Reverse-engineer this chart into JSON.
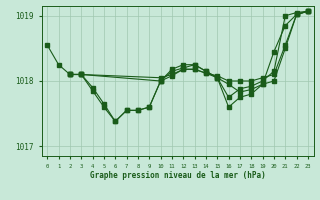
{
  "title": "Graphe pression niveau de la mer (hPa)",
  "bg_color": "#c8e8d8",
  "line_color": "#1a5c1a",
  "grid_color": "#a0c8b0",
  "ylim": [
    1016.85,
    1019.15
  ],
  "yticks": [
    1017,
    1018,
    1019
  ],
  "xlim": [
    -0.5,
    23.5
  ],
  "xticks": [
    0,
    1,
    2,
    3,
    4,
    5,
    6,
    7,
    8,
    9,
    10,
    11,
    12,
    13,
    14,
    15,
    16,
    17,
    18,
    19,
    20,
    21,
    22,
    23
  ],
  "series": [
    {
      "x": [
        0,
        1,
        2,
        3,
        4,
        5,
        6,
        7,
        8,
        9,
        10,
        11,
        12,
        13,
        14,
        15,
        16,
        17,
        18,
        19,
        20,
        21,
        22,
        23
      ],
      "y": [
        1018.55,
        1018.25,
        1018.1,
        1018.1,
        1017.85,
        1017.6,
        1017.38,
        1017.55,
        1017.55,
        1017.6,
        1018.0,
        1018.15,
        1018.2,
        1018.25,
        1018.15,
        1018.05,
        1017.75,
        1017.88,
        1017.92,
        1018.0,
        1018.15,
        1019.0,
        1019.05,
        1019.07
      ]
    },
    {
      "x": [
        2,
        3,
        10,
        11,
        12,
        13,
        14,
        15,
        16,
        17,
        18,
        19,
        20,
        21,
        22,
        23
      ],
      "y": [
        1018.1,
        1018.1,
        1018.05,
        1018.1,
        1018.18,
        1018.18,
        1018.12,
        1018.08,
        1018.0,
        1018.0,
        1018.0,
        1018.05,
        1018.1,
        1018.55,
        1019.02,
        1019.07
      ]
    },
    {
      "x": [
        2,
        3,
        10,
        11,
        12,
        13,
        14,
        15,
        16,
        17,
        18,
        19,
        20,
        21,
        22,
        23
      ],
      "y": [
        1018.1,
        1018.1,
        1018.0,
        1018.08,
        1018.18,
        1018.18,
        1018.12,
        1018.05,
        1017.95,
        1017.83,
        1017.87,
        1017.95,
        1018.45,
        1018.85,
        1019.02,
        1019.07
      ]
    },
    {
      "x": [
        2,
        3,
        4,
        5,
        6,
        7,
        8,
        9,
        10,
        11,
        12,
        13,
        14,
        15,
        16,
        17,
        18,
        19,
        20,
        21,
        22,
        23
      ],
      "y": [
        1018.1,
        1018.1,
        1017.9,
        1017.65,
        1017.38,
        1017.55,
        1017.55,
        1017.6,
        1018.0,
        1018.18,
        1018.25,
        1018.25,
        1018.15,
        1018.05,
        1017.6,
        1017.75,
        1017.8,
        1017.95,
        1018.0,
        1018.5,
        1019.02,
        1019.07
      ]
    }
  ]
}
